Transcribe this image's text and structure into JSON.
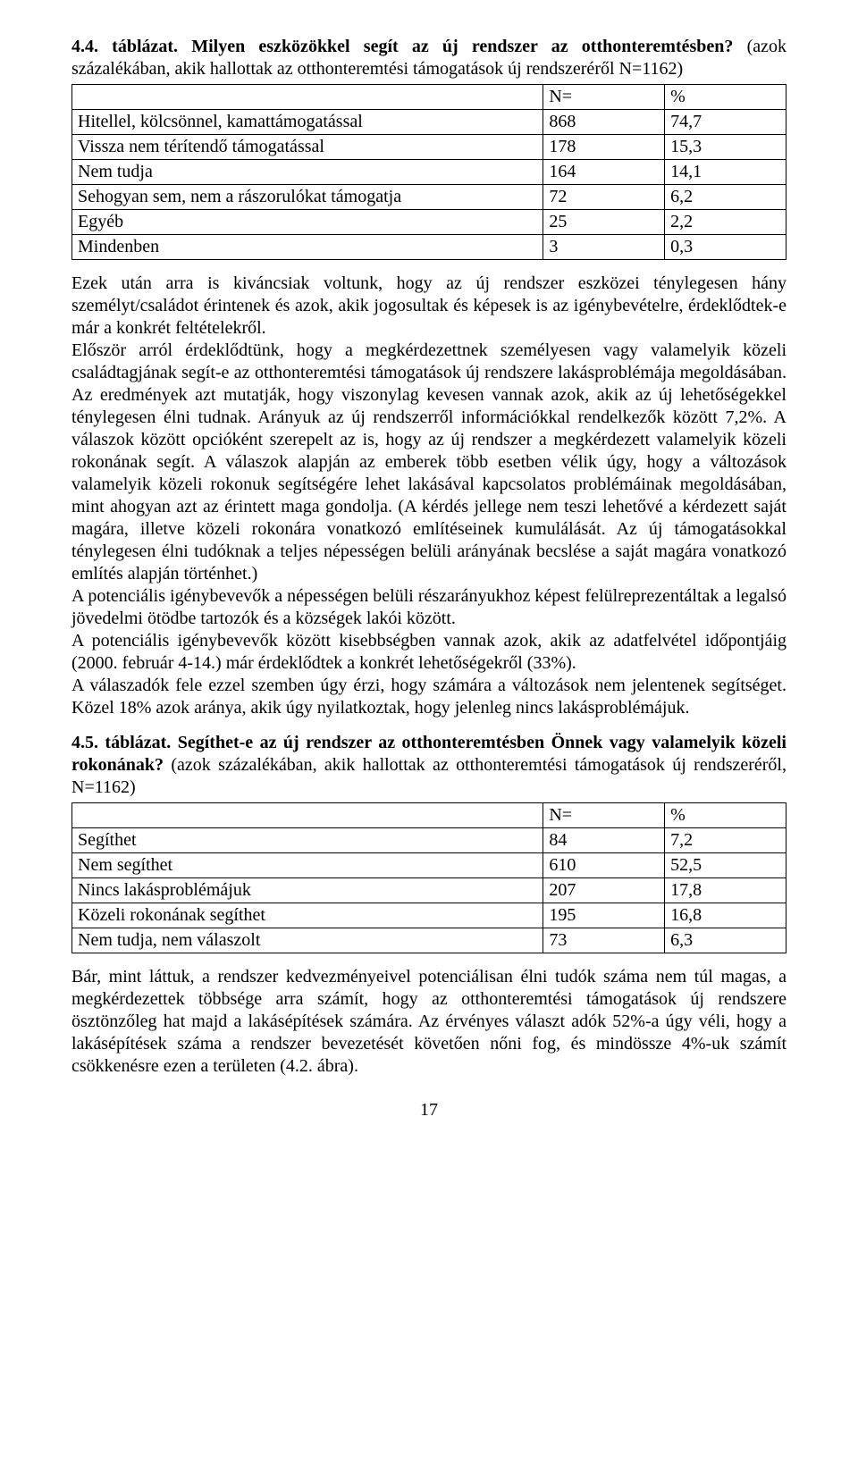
{
  "colors": {
    "text": "#000000",
    "background": "#ffffff",
    "border": "#000000"
  },
  "typography": {
    "font_family": "Times New Roman",
    "base_font_size_pt": 15,
    "bold_weight": 700
  },
  "heading44": {
    "bold": "4.4. táblázat. Milyen eszközökkel segít az új rendszer az otthonteremtésben?",
    "sub": "(azok százalékában, akik hallottak az otthonteremtési támogatások új rendszeréről N=1162)"
  },
  "table44": {
    "header": {
      "n": "N=",
      "p": "%"
    },
    "rows": [
      {
        "label": "Hitellel, kölcsönnel, kamattámogatással",
        "n": "868",
        "p": "74,7"
      },
      {
        "label": "Vissza nem térítendő támogatással",
        "n": "178",
        "p": "15,3"
      },
      {
        "label": "Nem tudja",
        "n": "164",
        "p": "14,1"
      },
      {
        "label": "Sehogyan sem, nem a rászorulókat támogatja",
        "n": "72",
        "p": "6,2"
      },
      {
        "label": "Egyéb",
        "n": "25",
        "p": "2,2"
      },
      {
        "label": "Mindenben",
        "n": "3",
        "p": "0,3"
      }
    ]
  },
  "para1": "Ezek után arra is kiváncsiak voltunk, hogy az új rendszer eszközei ténylegesen hány személyt/családot érintenek és azok, akik jogosultak és képesek is az igénybevételre, érdeklődtek-e már a konkrét feltételekről.",
  "para2": "Először arról érdeklődtünk, hogy a megkérdezettnek személyesen vagy valamelyik közeli családtagjának segít-e az otthonteremtési támogatások új rendszere lakásproblémája megoldásában. Az eredmények azt mutatják, hogy viszonylag kevesen vannak azok, akik az új lehetőségekkel ténylegesen élni tudnak. Arányuk az új rendszerről információkkal rendelkezők között 7,2%. A válaszok között opcióként szerepelt az is, hogy az új rendszer a megkérdezett valamelyik közeli rokonának segít. A válaszok alapján az emberek több esetben vélik úgy, hogy a változások valamelyik közeli rokonuk segítségére lehet lakásával kapcsolatos problémáinak megoldásában, mint ahogyan azt az érintett maga gondolja. (A kérdés jellege nem teszi lehetővé a kérdezett saját magára, illetve közeli rokonára vonatkozó említéseinek kumulálását. Az új támogatásokkal ténylegesen élni tudóknak a teljes népességen belüli arányának becslése a saját magára vonatkozó említés alapján történhet.)",
  "para3": "A potenciális igénybevevők a népességen belüli részarányukhoz képest felülreprezentáltak a legalsó jövedelmi ötödbe tartozók és a községek lakói között.",
  "para4": "A potenciális igénybevevők között kisebbségben vannak azok, akik az adatfelvétel időpontjáig (2000. február 4-14.) már érdeklődtek a konkrét lehetőségekről (33%).",
  "para5": "A válaszadók fele ezzel szemben úgy érzi, hogy számára a változások nem jelentenek segítséget. Közel 18% azok aránya, akik úgy nyilatkoztak, hogy jelenleg nincs lakásproblémájuk.",
  "heading45": {
    "bold": "4.5. táblázat. Segíthet-e az új rendszer az otthonteremtésben Önnek vagy valamelyik közeli rokonának?",
    "sub": " (azok százalékában, akik hallottak az otthonteremtési támogatások új rendszeréről, N=1162)"
  },
  "table45": {
    "header": {
      "n": "N=",
      "p": "%"
    },
    "rows": [
      {
        "label": "Segíthet",
        "n": "84",
        "p": "7,2"
      },
      {
        "label": "Nem segíthet",
        "n": "610",
        "p": "52,5"
      },
      {
        "label": "Nincs lakásproblémájuk",
        "n": "207",
        "p": "17,8"
      },
      {
        "label": "Közeli rokonának segíthet",
        "n": "195",
        "p": "16,8"
      },
      {
        "label": "Nem tudja, nem válaszolt",
        "n": "73",
        "p": "6,3"
      }
    ]
  },
  "para6": "Bár, mint láttuk, a rendszer kedvezményeivel potenciálisan élni tudók száma nem túl magas, a megkérdezettek többsége arra számít, hogy az otthonteremtési támogatások új rendszere ösztönzőleg hat majd a lakásépítések számára. Az érvényes választ adók 52%-a úgy véli, hogy a lakásépítések száma a rendszer bevezetését követően nőni fog, és mindössze 4%-uk számít csökkenésre ezen a területen (4.2. ábra).",
  "page_number": "17"
}
